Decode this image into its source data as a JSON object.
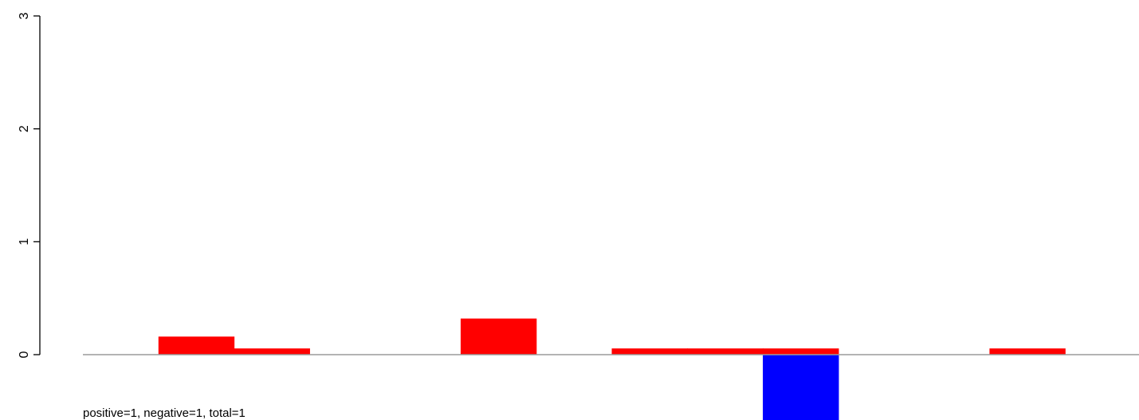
{
  "chart_data": {
    "type": "bar",
    "title": "",
    "xlabel": "",
    "ylabel": "",
    "ylim": [
      -0.58,
      3
    ],
    "y_ticks": [
      0,
      1,
      2,
      3
    ],
    "y_tick_labels": [
      "0",
      "1",
      "2",
      "3"
    ],
    "grid": false,
    "baseline": 0,
    "n_slots": 14,
    "bars": [
      {
        "slot": 1,
        "value": 0.16,
        "color": "#ff0000"
      },
      {
        "slot": 2,
        "value": 0.055,
        "color": "#ff0000"
      },
      {
        "slot": 5,
        "value": 0.32,
        "color": "#ff0000"
      },
      {
        "slot": 7,
        "value": 0.055,
        "color": "#ff0000"
      },
      {
        "slot": 8,
        "value": 0.055,
        "color": "#ff0000"
      },
      {
        "slot": 9,
        "value": 0.055,
        "color": "#ff0000"
      },
      {
        "slot": 9,
        "value": -0.58,
        "color": "#0000ff"
      },
      {
        "slot": 12,
        "value": 0.055,
        "color": "#ff0000"
      }
    ],
    "annotation": "positive=1, negative=1, total=1"
  }
}
